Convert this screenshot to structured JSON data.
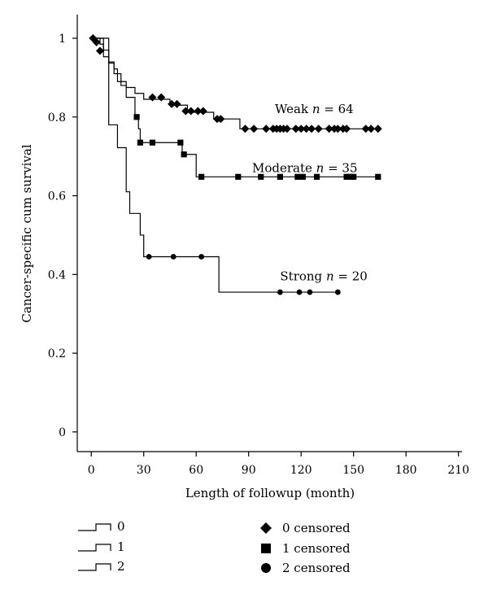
{
  "chart_data": {
    "type": "line",
    "title": "",
    "xlabel": "Length of followup (month)",
    "ylabel": "Cancer-specific cum survival",
    "xlim": [
      -8,
      212
    ],
    "ylim": [
      -0.05,
      1.06
    ],
    "x_ticks": [
      0,
      30,
      60,
      90,
      120,
      150,
      180,
      210
    ],
    "y_ticks": [
      0,
      0.2,
      0.4,
      0.6,
      0.8,
      1
    ],
    "grid": false,
    "series": [
      {
        "name": "0",
        "annotation": {
          "label": "Weak",
          "n_text": "n",
          "count_text": " = 64",
          "x": 105,
          "y": 0.81
        },
        "steps": [
          [
            0,
            1.0
          ],
          [
            5,
            0.985
          ],
          [
            7,
            0.953
          ],
          [
            10,
            0.937
          ],
          [
            13,
            0.922
          ],
          [
            15,
            0.89
          ],
          [
            20,
            0.875
          ],
          [
            25,
            0.86
          ],
          [
            30,
            0.845
          ],
          [
            45,
            0.83
          ],
          [
            55,
            0.812
          ],
          [
            70,
            0.795
          ],
          [
            85,
            0.77
          ],
          [
            165,
            0.77
          ]
        ],
        "censored": [
          [
            1,
            1.0
          ],
          [
            3,
            0.99
          ],
          [
            5,
            0.968
          ],
          [
            35,
            0.85
          ],
          [
            40,
            0.85
          ],
          [
            46,
            0.833
          ],
          [
            49,
            0.833
          ],
          [
            54,
            0.815
          ],
          [
            57,
            0.815
          ],
          [
            61,
            0.815
          ],
          [
            64,
            0.815
          ],
          [
            72,
            0.795
          ],
          [
            74,
            0.795
          ],
          [
            88,
            0.77
          ],
          [
            93,
            0.77
          ],
          [
            100,
            0.77
          ],
          [
            104,
            0.77
          ],
          [
            106,
            0.77
          ],
          [
            108,
            0.77
          ],
          [
            110,
            0.77
          ],
          [
            112,
            0.77
          ],
          [
            117,
            0.77
          ],
          [
            120,
            0.77
          ],
          [
            123,
            0.77
          ],
          [
            126,
            0.77
          ],
          [
            130,
            0.77
          ],
          [
            136,
            0.77
          ],
          [
            139,
            0.77
          ],
          [
            141,
            0.77
          ],
          [
            144,
            0.77
          ],
          [
            146,
            0.77
          ],
          [
            157,
            0.77
          ],
          [
            160,
            0.77
          ],
          [
            164,
            0.77
          ]
        ]
      },
      {
        "name": "1",
        "annotation": {
          "label": "Moderate",
          "n_text": "n",
          "count_text": " = 35",
          "x": 92,
          "y": 0.66
        },
        "steps": [
          [
            0,
            1.0
          ],
          [
            7,
            0.97
          ],
          [
            10,
            0.94
          ],
          [
            13,
            0.91
          ],
          [
            17,
            0.88
          ],
          [
            20,
            0.85
          ],
          [
            25,
            0.8
          ],
          [
            27,
            0.77
          ],
          [
            28,
            0.735
          ],
          [
            52,
            0.705
          ],
          [
            60,
            0.648
          ],
          [
            165,
            0.648
          ]
        ],
        "censored": [
          [
            26,
            0.8
          ],
          [
            28,
            0.735
          ],
          [
            35,
            0.735
          ],
          [
            51,
            0.735
          ],
          [
            53,
            0.705
          ],
          [
            63,
            0.648
          ],
          [
            84,
            0.648
          ],
          [
            97,
            0.648
          ],
          [
            108,
            0.648
          ],
          [
            118,
            0.648
          ],
          [
            121,
            0.648
          ],
          [
            129,
            0.648
          ],
          [
            146,
            0.648
          ],
          [
            148,
            0.648
          ],
          [
            150,
            0.648
          ],
          [
            164,
            0.648
          ]
        ]
      },
      {
        "name": "2",
        "annotation": {
          "label": "Strong",
          "n_text": "n",
          "count_text": " = 20",
          "x": 108,
          "y": 0.385
        },
        "steps": [
          [
            0,
            1.0
          ],
          [
            10,
            0.78
          ],
          [
            15,
            0.722
          ],
          [
            20,
            0.61
          ],
          [
            22,
            0.555
          ],
          [
            28,
            0.5
          ],
          [
            30,
            0.445
          ],
          [
            73,
            0.355
          ],
          [
            142,
            0.355
          ]
        ],
        "censored": [
          [
            33,
            0.445
          ],
          [
            47,
            0.445
          ],
          [
            63,
            0.445
          ],
          [
            108,
            0.355
          ],
          [
            119,
            0.355
          ],
          [
            125,
            0.355
          ],
          [
            141,
            0.355
          ]
        ]
      }
    ],
    "legend": {
      "placement": "bottom",
      "line_entries": [
        "0",
        "1",
        "2"
      ],
      "marker_entries": [
        {
          "marker": "diamond",
          "label": "0 censored"
        },
        {
          "marker": "square",
          "label": "1 censored"
        },
        {
          "marker": "circle",
          "label": "2 censored"
        }
      ]
    },
    "colors": {
      "line": "#000000",
      "marker": "#000000",
      "background": "#ffffff"
    }
  }
}
